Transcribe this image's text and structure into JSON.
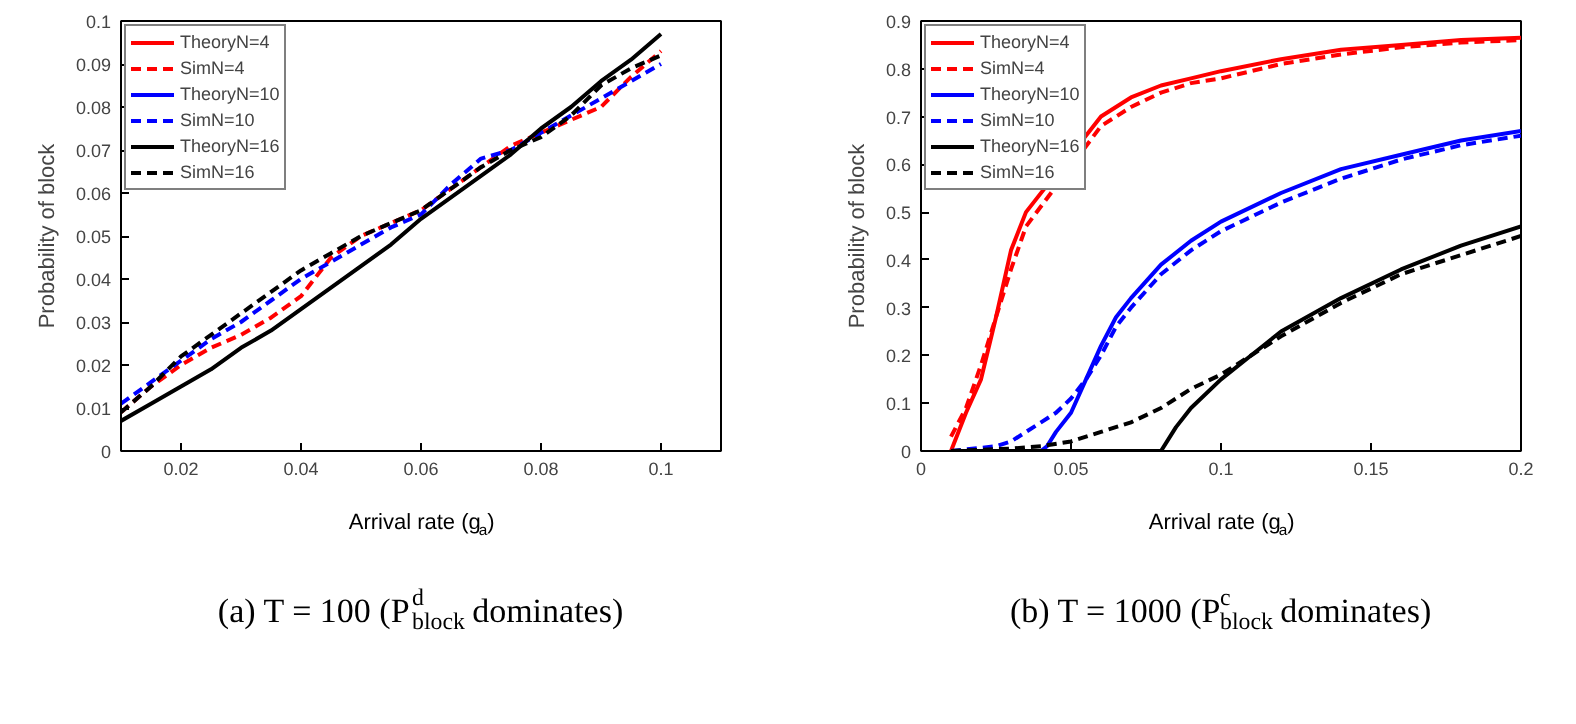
{
  "chart_data": [
    {
      "type": "line",
      "title": "(a) T = 100 (P$^{d}$$_{block}$ dominates)",
      "xlabel": "Arrival rate (g$_{a}$)",
      "ylabel": "Probability of block",
      "xlim": [
        0.01,
        0.11
      ],
      "ylim": [
        0,
        0.1
      ],
      "xticks": [
        0.02,
        0.04,
        0.06,
        0.08,
        0.1
      ],
      "yticks": [
        0,
        0.01,
        0.02,
        0.03,
        0.04,
        0.05,
        0.06,
        0.07,
        0.08,
        0.09,
        0.1
      ],
      "legend": "top left",
      "grid": false,
      "x": [
        0.01,
        0.015,
        0.02,
        0.025,
        0.03,
        0.035,
        0.04,
        0.045,
        0.05,
        0.055,
        0.06,
        0.065,
        0.07,
        0.075,
        0.08,
        0.085,
        0.09,
        0.095,
        0.1
      ],
      "series": [
        {
          "name": "TheoryN=4",
          "color": "#ff0000",
          "line_style": "solid",
          "values": [
            null,
            null,
            null,
            null,
            null,
            null,
            null,
            null,
            null,
            null,
            null,
            null,
            null,
            null,
            null,
            null,
            null,
            null,
            null
          ]
        },
        {
          "name": "SimN=4",
          "color": "#ff0000",
          "line_style": "dashed",
          "values": [
            0.009,
            0.015,
            0.02,
            0.024,
            0.027,
            0.031,
            0.036,
            0.045,
            0.05,
            0.053,
            0.056,
            0.061,
            0.066,
            0.071,
            0.074,
            0.077,
            0.08,
            0.087,
            0.093
          ]
        },
        {
          "name": "TheoryN=10",
          "color": "#0000ff",
          "line_style": "solid",
          "values": [
            null,
            null,
            null,
            null,
            null,
            null,
            null,
            null,
            null,
            null,
            null,
            null,
            null,
            null,
            null,
            null,
            null,
            null,
            null
          ]
        },
        {
          "name": "SimN=10",
          "color": "#0000ff",
          "line_style": "dashed",
          "values": [
            0.011,
            0.016,
            0.021,
            0.026,
            0.03,
            0.035,
            0.04,
            0.044,
            0.048,
            0.052,
            0.055,
            0.062,
            0.068,
            0.07,
            0.074,
            0.078,
            0.082,
            0.086,
            0.09
          ]
        },
        {
          "name": "TheoryN=16",
          "color": "#000000",
          "line_style": "solid",
          "values": [
            0.007,
            0.011,
            0.015,
            0.019,
            0.024,
            0.028,
            0.033,
            0.038,
            0.043,
            0.048,
            0.054,
            0.059,
            0.064,
            0.069,
            0.075,
            0.08,
            0.086,
            0.091,
            0.097
          ]
        },
        {
          "name": "SimN=16",
          "color": "#000000",
          "line_style": "dashed",
          "values": [
            0.009,
            0.015,
            0.022,
            0.027,
            0.032,
            0.037,
            0.042,
            0.046,
            0.05,
            0.053,
            0.056,
            0.061,
            0.066,
            0.07,
            0.073,
            0.078,
            0.085,
            0.089,
            0.092
          ]
        }
      ]
    },
    {
      "type": "line",
      "title": "(b) T = 1000 (P$^{c}$$_{block}$ dominates)",
      "xlabel": "Arrival rate (g$_{a}$)",
      "ylabel": "Probability of block",
      "xlim": [
        0,
        0.2
      ],
      "ylim": [
        0,
        0.9
      ],
      "xticks": [
        0,
        0.05,
        0.1,
        0.15,
        0.2
      ],
      "yticks": [
        0,
        0.1,
        0.2,
        0.3,
        0.4,
        0.5,
        0.6,
        0.7,
        0.8,
        0.9
      ],
      "legend": "top left",
      "grid": false,
      "series": [
        {
          "name": "TheoryN=4",
          "color": "#ff0000",
          "line_style": "solid",
          "x": [
            0.01,
            0.015,
            0.02,
            0.025,
            0.03,
            0.035,
            0.06,
            0.07,
            0.08,
            0.09,
            0.1,
            0.12,
            0.14,
            0.16,
            0.18,
            0.2
          ],
          "values": [
            0,
            0.08,
            0.15,
            0.28,
            0.42,
            0.5,
            0.7,
            0.74,
            0.765,
            0.78,
            0.795,
            0.82,
            0.84,
            0.85,
            0.86,
            0.865
          ]
        },
        {
          "name": "SimN=4",
          "color": "#ff0000",
          "line_style": "dashed",
          "x": [
            0.01,
            0.015,
            0.02,
            0.025,
            0.03,
            0.035,
            0.06,
            0.07,
            0.08,
            0.09,
            0.1,
            0.12,
            0.14,
            0.16,
            0.18,
            0.2
          ],
          "values": [
            0.03,
            0.09,
            0.18,
            0.28,
            0.38,
            0.47,
            0.68,
            0.72,
            0.75,
            0.77,
            0.78,
            0.81,
            0.83,
            0.845,
            0.855,
            0.86
          ]
        },
        {
          "name": "TheoryN=10",
          "color": "#0000ff",
          "line_style": "solid",
          "x": [
            0.01,
            0.04,
            0.042,
            0.045,
            0.05,
            0.055,
            0.06,
            0.065,
            0.07,
            0.08,
            0.09,
            0.1,
            0.12,
            0.14,
            0.16,
            0.18,
            0.2
          ],
          "values": [
            0,
            0,
            0.01,
            0.04,
            0.08,
            0.15,
            0.22,
            0.28,
            0.32,
            0.39,
            0.44,
            0.48,
            0.54,
            0.59,
            0.62,
            0.65,
            0.67
          ]
        },
        {
          "name": "SimN=10",
          "color": "#0000ff",
          "line_style": "dashed",
          "x": [
            0.01,
            0.025,
            0.03,
            0.035,
            0.04,
            0.045,
            0.05,
            0.055,
            0.06,
            0.065,
            0.07,
            0.08,
            0.09,
            0.1,
            0.12,
            0.14,
            0.16,
            0.18,
            0.2
          ],
          "values": [
            0,
            0.01,
            0.02,
            0.04,
            0.06,
            0.08,
            0.11,
            0.15,
            0.2,
            0.26,
            0.3,
            0.37,
            0.42,
            0.46,
            0.52,
            0.57,
            0.61,
            0.64,
            0.66
          ]
        },
        {
          "name": "TheoryN=16",
          "color": "#000000",
          "line_style": "solid",
          "x": [
            0.01,
            0.08,
            0.085,
            0.09,
            0.1,
            0.11,
            0.12,
            0.14,
            0.16,
            0.18,
            0.2
          ],
          "values": [
            0,
            0,
            0.05,
            0.09,
            0.15,
            0.2,
            0.25,
            0.32,
            0.38,
            0.43,
            0.47
          ]
        },
        {
          "name": "SimN=16",
          "color": "#000000",
          "line_style": "dashed",
          "x": [
            0.01,
            0.03,
            0.04,
            0.05,
            0.06,
            0.07,
            0.08,
            0.09,
            0.1,
            0.11,
            0.12,
            0.14,
            0.16,
            0.18,
            0.2
          ],
          "values": [
            0,
            0.005,
            0.01,
            0.02,
            0.04,
            0.06,
            0.09,
            0.13,
            0.16,
            0.2,
            0.24,
            0.31,
            0.37,
            0.41,
            0.45
          ]
        }
      ]
    }
  ]
}
